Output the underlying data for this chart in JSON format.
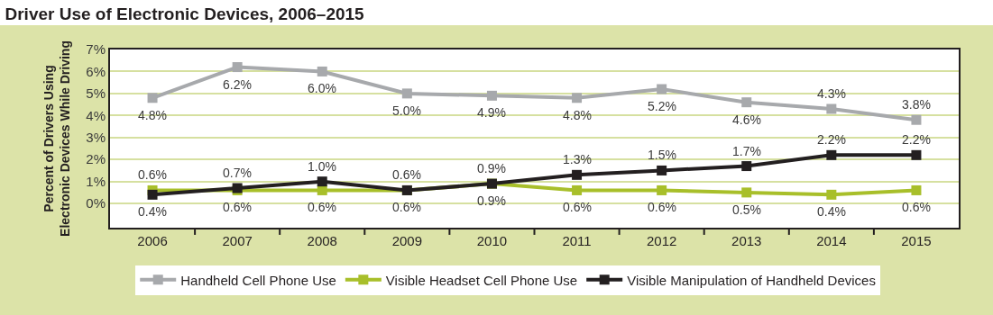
{
  "chart_data": {
    "type": "line",
    "title": "Driver Use of Electronic Devices, 2006–2015",
    "ylabel": "Percent of Drivers Using\nElectronic Devices While Driving",
    "categories": [
      "2006",
      "2007",
      "2008",
      "2009",
      "2010",
      "2011",
      "2012",
      "2013",
      "2014",
      "2015"
    ],
    "series": [
      {
        "name": "Handheld Cell Phone Use",
        "color": "#a7a9ac",
        "values": [
          4.8,
          6.2,
          6.0,
          5.0,
          4.9,
          4.8,
          5.2,
          4.6,
          4.3,
          3.8
        ],
        "value_labels": [
          "4.8%",
          "6.2%",
          "6.0%",
          "5.0%",
          "4.9%",
          "4.8%",
          "5.2%",
          "4.6%",
          "4.3%",
          "3.8%"
        ]
      },
      {
        "name": "Visible Headset Cell Phone Use",
        "color": "#a8bf2a",
        "values": [
          0.6,
          0.6,
          0.6,
          0.6,
          0.9,
          0.6,
          0.6,
          0.5,
          0.4,
          0.6
        ],
        "value_labels": [
          "0.6%",
          "0.6%",
          "0.6%",
          "0.6%",
          "0.9%",
          "0.6%",
          "0.6%",
          "0.5%",
          "0.4%",
          "0.6%"
        ]
      },
      {
        "name": "Visible Manipulation of Handheld Devices",
        "color": "#231f20",
        "values": [
          0.4,
          0.7,
          1.0,
          0.6,
          0.9,
          1.3,
          1.5,
          1.7,
          2.2,
          2.2
        ],
        "value_labels": [
          "0.4%",
          "0.7%",
          "1.0%",
          "0.6%",
          "0.9%",
          "1.3%",
          "1.5%",
          "1.7%",
          "2.2%",
          "2.2%"
        ]
      }
    ],
    "ylim": [
      -1.1,
      7
    ],
    "yticks": [
      {
        "value": 0,
        "label": "0%"
      },
      {
        "value": 1,
        "label": "1%"
      },
      {
        "value": 2,
        "label": "2%"
      },
      {
        "value": 3,
        "label": "3%"
      },
      {
        "value": 4,
        "label": "4%"
      },
      {
        "value": 5,
        "label": "5%"
      },
      {
        "value": 6,
        "label": "6%"
      },
      {
        "value": 7,
        "label": "7%"
      }
    ],
    "grid": "y",
    "legend": "bottom",
    "marker": "square",
    "line_style": "solid"
  }
}
